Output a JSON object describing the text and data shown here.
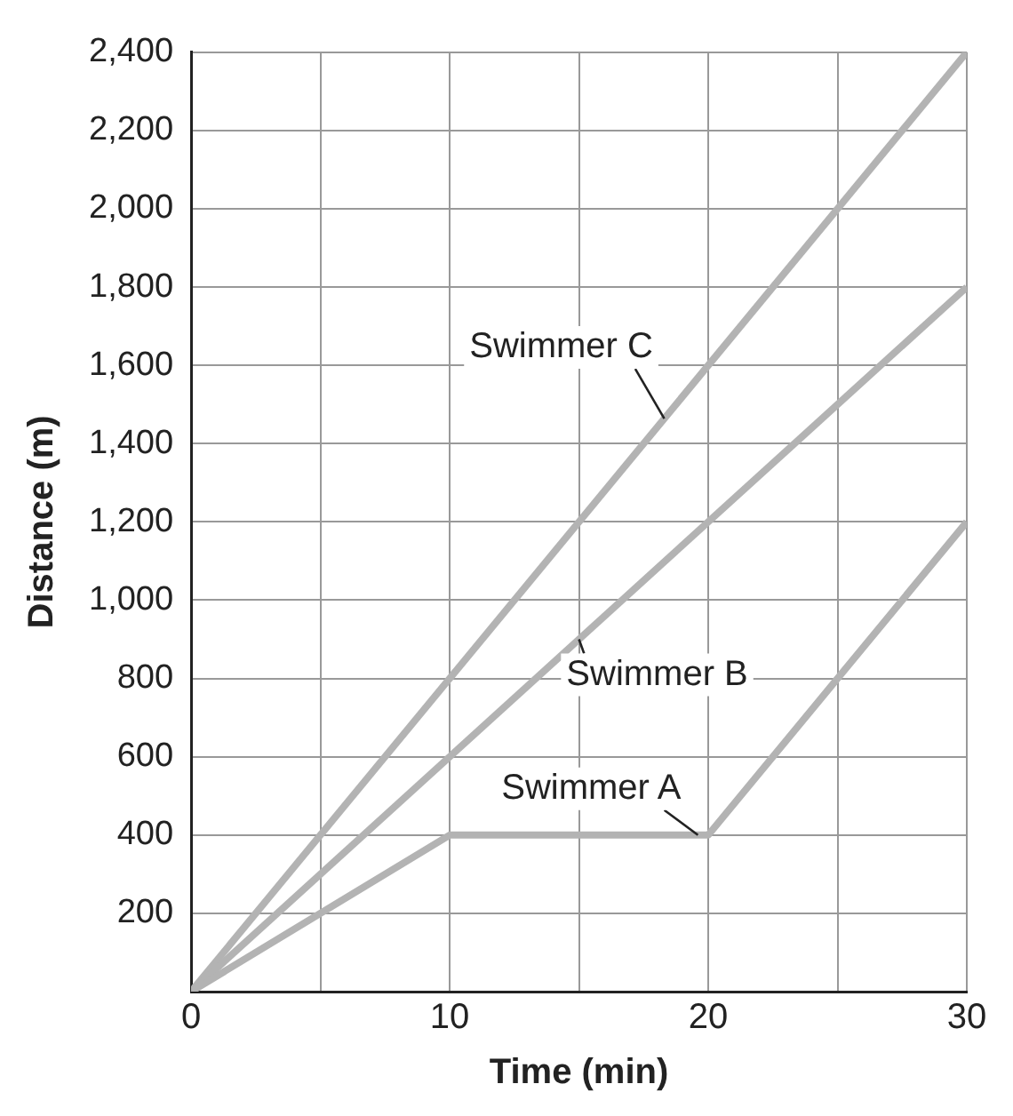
{
  "chart_data": {
    "type": "line",
    "xlabel": "Time (min)",
    "ylabel": "Distance (m)",
    "xlim": [
      0,
      30
    ],
    "xticks": [
      0,
      {
        "value": 5,
        "label": null
      },
      10,
      {
        "value": 15,
        "label": null
      },
      20,
      {
        "value": 25,
        "label": null
      },
      30
    ],
    "ylim": [
      0,
      2400
    ],
    "yticks": [
      {
        "value": 0,
        "label": null
      },
      200,
      400,
      600,
      800,
      {
        "value": 1000,
        "label": "1,000"
      },
      {
        "value": 1200,
        "label": "1,200"
      },
      {
        "value": 1400,
        "label": "1,400"
      },
      {
        "value": 1600,
        "label": "1,600"
      },
      {
        "value": 1800,
        "label": "1,800"
      },
      {
        "value": 2000,
        "label": "2,000"
      },
      {
        "value": 2200,
        "label": "2,200"
      },
      {
        "value": 2400,
        "label": "2,400"
      }
    ],
    "grid": true,
    "legend": false,
    "marker": "none",
    "line_style": "solid",
    "series": [
      {
        "name": "Swimmer A",
        "color": "#b3b3b3",
        "x": [
          0,
          10,
          20,
          30
        ],
        "values": [
          0,
          400,
          400,
          1200
        ]
      },
      {
        "name": "Swimmer B",
        "color": "#b3b3b3",
        "x": [
          0,
          30
        ],
        "values": [
          0,
          1800
        ]
      },
      {
        "name": "Swimmer C",
        "color": "#b3b3b3",
        "x": [
          0,
          30
        ],
        "values": [
          0,
          2400
        ]
      }
    ]
  }
}
